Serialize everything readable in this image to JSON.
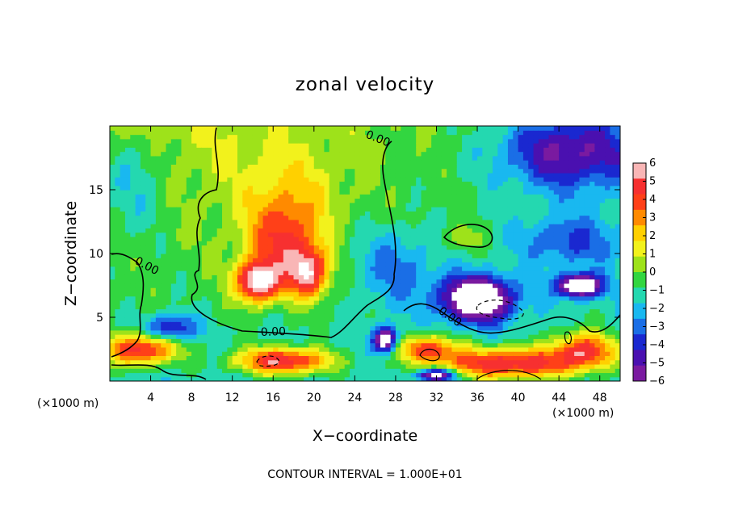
{
  "chart_data": {
    "type": "heatmap",
    "title": "zonal velocity",
    "xlabel": "X−coordinate",
    "ylabel": "Z−coordinate",
    "x_unit_left": "(×1000 m)",
    "x_unit_right": "(×1000 m)",
    "xlim": [
      0,
      50
    ],
    "ylim": [
      0,
      20
    ],
    "x_ticks": [
      4,
      8,
      12,
      16,
      20,
      24,
      28,
      32,
      36,
      40,
      44,
      48
    ],
    "x_tick_labels": [
      "4",
      "8",
      "12",
      "16",
      "20",
      "24",
      "28",
      "32",
      "36",
      "40",
      "44",
      "48"
    ],
    "y_ticks": [
      5,
      10,
      15
    ],
    "y_tick_labels": [
      "5",
      "10",
      "15"
    ],
    "colorbar": {
      "range": [
        -6,
        6
      ],
      "ticks": [
        "6",
        "5",
        "4",
        "3",
        "2",
        "1",
        "0",
        "−1",
        "−2",
        "−3",
        "−4",
        "−5",
        "−6"
      ],
      "colors": [
        "#f9b6b6",
        "#f73030",
        "#ff4018",
        "#ff8a00",
        "#ffd000",
        "#f2f21c",
        "#9ee21a",
        "#32d640",
        "#24d8b0",
        "#19b8f0",
        "#1a6ee6",
        "#1a28d0",
        "#4a10b0",
        "#7a1aa0"
      ]
    },
    "contour_labels": [
      "0.00",
      "0.00",
      "0.00",
      "0.00"
    ],
    "note": "CONTOUR INTERVAL = 1.000E+01",
    "features": [
      {
        "x": 17,
        "z": 11,
        "u": 4.5,
        "sx": 3.5,
        "sz": 3.2
      },
      {
        "x": 14.5,
        "z": 7.8,
        "u": 7,
        "sx": 2.2,
        "sz": 1.6
      },
      {
        "x": 19.5,
        "z": 8.5,
        "u": 5.5,
        "sx": 2.0,
        "sz": 2.0
      },
      {
        "x": 18,
        "z": 15,
        "u": 1.5,
        "sx": 5,
        "sz": 3
      },
      {
        "x": 17,
        "z": 1.6,
        "u": 6.5,
        "sx": 4.5,
        "sz": 1.0
      },
      {
        "x": 3,
        "z": 2.5,
        "u": 6,
        "sx": 3.5,
        "sz": 1.2
      },
      {
        "x": 36,
        "z": 6.5,
        "u": -8,
        "sx": 3.5,
        "sz": 1.8
      },
      {
        "x": 46,
        "z": 7.5,
        "u": -7.5,
        "sx": 2.2,
        "sz": 0.9
      },
      {
        "x": 39,
        "z": 1.4,
        "u": 6.5,
        "sx": 7,
        "sz": 1.2
      },
      {
        "x": 31,
        "z": 2.6,
        "u": 5,
        "sx": 3,
        "sz": 1.0
      },
      {
        "x": 46.5,
        "z": 2.5,
        "u": 5.5,
        "sx": 3,
        "sz": 1.4
      },
      {
        "x": 27,
        "z": 3.2,
        "u": -7,
        "sx": 1.2,
        "sz": 1.0
      },
      {
        "x": 34.5,
        "z": 11.2,
        "u": 1.5,
        "sx": 2.0,
        "sz": 1.0
      },
      {
        "x": 45,
        "z": 18,
        "u": -4.5,
        "sx": 7,
        "sz": 3
      },
      {
        "x": 6,
        "z": 4.2,
        "u": -4,
        "sx": 2.5,
        "sz": 1.0
      },
      {
        "x": 28,
        "z": 9,
        "u": -2.2,
        "sx": 4,
        "sz": 3
      },
      {
        "x": 45,
        "z": 11,
        "u": -2.5,
        "sx": 5,
        "sz": 2
      },
      {
        "x": 2,
        "z": 16,
        "u": -2.3,
        "sx": 4,
        "sz": 5
      },
      {
        "x": 32,
        "z": 0.5,
        "u": -6,
        "sx": 2,
        "sz": 0.5
      }
    ]
  }
}
